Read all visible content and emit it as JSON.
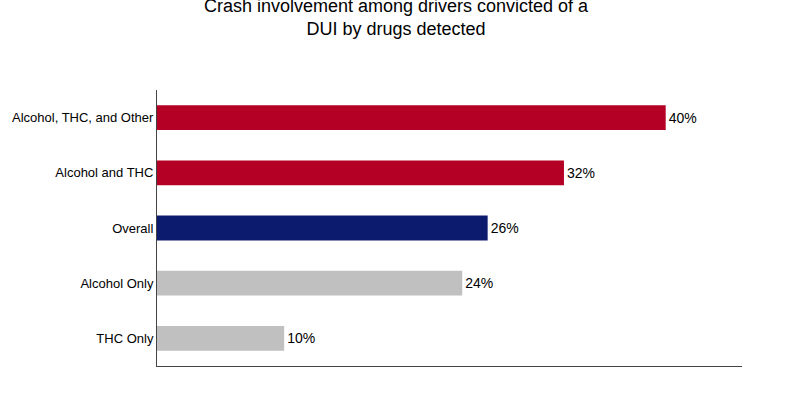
{
  "chart_data": {
    "type": "bar",
    "orientation": "horizontal",
    "title": "Crash involvement among drivers convicted of a\nDUI by drugs detected",
    "categories": [
      "THC Only",
      "Alcohol Only",
      "Overall",
      "Alcohol and THC",
      "Alcohol, THC, and Other"
    ],
    "values": [
      10,
      24,
      26,
      32,
      40
    ],
    "value_labels": [
      "10%",
      "24%",
      "26%",
      "32%",
      "40%"
    ],
    "colors": [
      "#c0c0c0",
      "#c0c0c0",
      "#0d1b6e",
      "#b30024",
      "#b30024"
    ],
    "xlim": [
      0,
      46
    ],
    "grid": false,
    "data_labels": true,
    "tick_labels": "y"
  }
}
